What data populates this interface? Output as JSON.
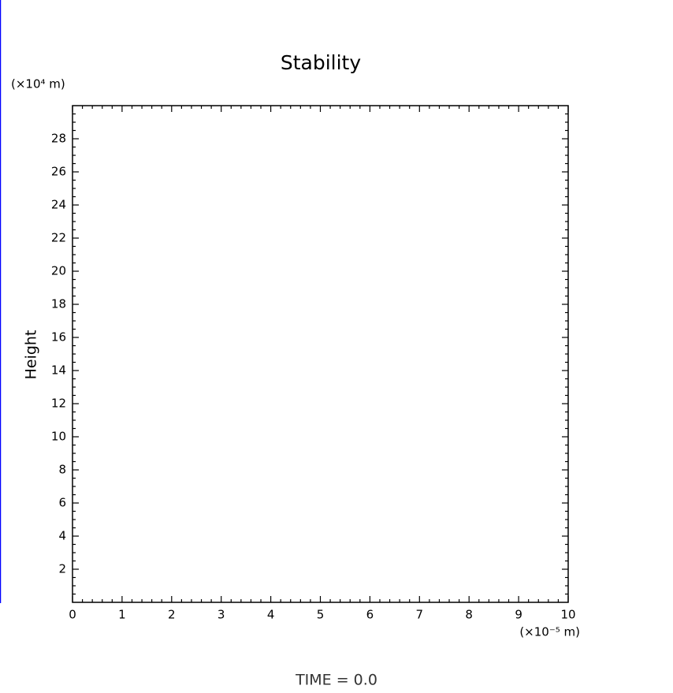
{
  "chart_data": {
    "type": "line",
    "title": "Stability",
    "ylabel": "Height",
    "y_unit_label": "(×10⁴ m)",
    "x_unit_label": "(×10⁻⁵ m)",
    "footer": "TIME  =  0.0",
    "series": [],
    "xlim": [
      0,
      10
    ],
    "xticks": [
      0,
      1,
      2,
      3,
      4,
      5,
      6,
      7,
      8,
      9,
      10
    ],
    "ylim": [
      0,
      30
    ],
    "yticks": [
      2,
      4,
      6,
      8,
      10,
      12,
      14,
      16,
      18,
      20,
      22,
      24,
      26,
      28
    ],
    "minor_divisions": {
      "x": 5,
      "y": 4
    },
    "grid": false
  }
}
